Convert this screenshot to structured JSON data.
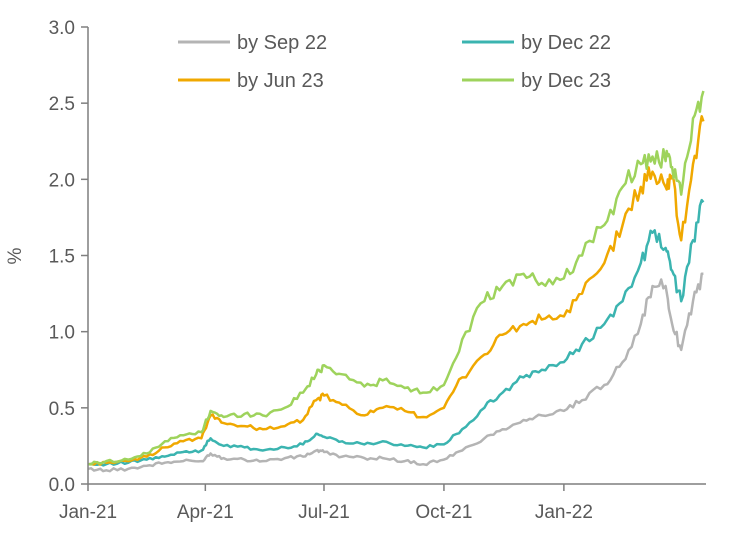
{
  "chart_data": {
    "type": "line",
    "title": "",
    "xlabel": "",
    "ylabel": "%",
    "ylim": [
      0,
      3.0
    ],
    "yticks": [
      "0.0",
      "0.5",
      "1.0",
      "1.5",
      "2.0",
      "2.5",
      "3.0"
    ],
    "xlim": [
      "2021-01-01",
      "2022-04-20"
    ],
    "xticks": [
      {
        "date": "2021-01-01",
        "label": "Jan-21"
      },
      {
        "date": "2021-04-01",
        "label": "Apr-21"
      },
      {
        "date": "2021-07-01",
        "label": "Jul-21"
      },
      {
        "date": "2021-10-01",
        "label": "Oct-21"
      },
      {
        "date": "2022-01-01",
        "label": "Jan-22"
      }
    ],
    "grid": false,
    "legend_position": "top",
    "x": [
      "2021-01-01",
      "2021-01-15",
      "2021-02-01",
      "2021-02-15",
      "2021-03-01",
      "2021-03-15",
      "2021-03-29",
      "2021-04-05",
      "2021-04-15",
      "2021-05-01",
      "2021-05-15",
      "2021-06-01",
      "2021-06-15",
      "2021-06-25",
      "2021-07-01",
      "2021-07-15",
      "2021-08-01",
      "2021-08-15",
      "2021-09-01",
      "2021-09-15",
      "2021-10-01",
      "2021-10-15",
      "2021-11-01",
      "2021-11-15",
      "2021-12-01",
      "2021-12-15",
      "2022-01-01",
      "2022-01-15",
      "2022-02-01",
      "2022-02-15",
      "2022-03-01",
      "2022-03-10",
      "2022-03-20",
      "2022-03-25",
      "2022-04-01",
      "2022-04-10",
      "2022-04-18"
    ],
    "series": [
      {
        "name": "by Sep 22",
        "color": "#b4b4b4",
        "values": [
          0.1,
          0.09,
          0.1,
          0.12,
          0.14,
          0.15,
          0.15,
          0.2,
          0.17,
          0.16,
          0.15,
          0.17,
          0.18,
          0.22,
          0.21,
          0.18,
          0.17,
          0.17,
          0.15,
          0.13,
          0.16,
          0.22,
          0.3,
          0.36,
          0.42,
          0.45,
          0.48,
          0.55,
          0.65,
          0.8,
          1.05,
          1.3,
          1.3,
          1.05,
          0.88,
          1.2,
          1.38
        ]
      },
      {
        "name": "by Dec 22",
        "color": "#3bb4b0",
        "values": [
          0.13,
          0.13,
          0.14,
          0.16,
          0.18,
          0.21,
          0.22,
          0.3,
          0.25,
          0.24,
          0.22,
          0.24,
          0.26,
          0.33,
          0.31,
          0.28,
          0.26,
          0.28,
          0.25,
          0.24,
          0.26,
          0.36,
          0.5,
          0.6,
          0.7,
          0.75,
          0.8,
          0.92,
          1.05,
          1.2,
          1.45,
          1.65,
          1.55,
          1.4,
          1.2,
          1.6,
          1.85
        ]
      },
      {
        "name": "by Jun 23",
        "color": "#f0a800",
        "values": [
          0.13,
          0.14,
          0.15,
          0.18,
          0.24,
          0.28,
          0.3,
          0.45,
          0.4,
          0.38,
          0.36,
          0.38,
          0.42,
          0.55,
          0.58,
          0.52,
          0.45,
          0.5,
          0.48,
          0.44,
          0.5,
          0.7,
          0.85,
          0.98,
          1.05,
          1.08,
          1.1,
          1.25,
          1.45,
          1.7,
          1.95,
          2.05,
          1.95,
          2.02,
          1.6,
          2.1,
          2.38
        ]
      },
      {
        "name": "by Dec 23",
        "color": "#9ed35c",
        "values": [
          0.13,
          0.15,
          0.16,
          0.2,
          0.28,
          0.32,
          0.34,
          0.48,
          0.44,
          0.46,
          0.45,
          0.5,
          0.6,
          0.72,
          0.78,
          0.72,
          0.64,
          0.68,
          0.63,
          0.6,
          0.65,
          0.95,
          1.2,
          1.3,
          1.38,
          1.32,
          1.35,
          1.5,
          1.7,
          1.95,
          2.1,
          2.15,
          2.12,
          2.08,
          1.9,
          2.4,
          2.58
        ]
      }
    ]
  }
}
